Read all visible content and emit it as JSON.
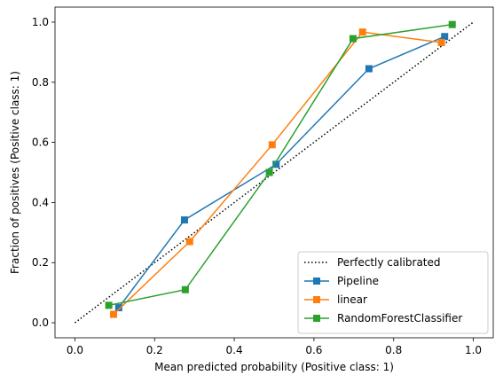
{
  "chart_data": {
    "type": "line",
    "title": "",
    "xlabel": "Mean predicted probability (Positive class: 1)",
    "ylabel": "Fraction of positives (Positive class: 1)",
    "xlim": [
      -0.05,
      1.05
    ],
    "ylim": [
      -0.05,
      1.05
    ],
    "xticks": [
      0.0,
      0.2,
      0.4,
      0.6,
      0.8,
      1.0
    ],
    "yticks": [
      0.0,
      0.2,
      0.4,
      0.6,
      0.8,
      1.0
    ],
    "xtick_labels": [
      "0.0",
      "0.2",
      "0.4",
      "0.6",
      "0.8",
      "1.0"
    ],
    "ytick_labels": [
      "0.0",
      "0.2",
      "0.4",
      "0.6",
      "0.8",
      "1.0"
    ],
    "grid": false,
    "legend_position": "lower right",
    "reference_line": {
      "name": "Perfectly calibrated",
      "x": [
        0,
        1
      ],
      "y": [
        0,
        1
      ],
      "color": "#000000",
      "style": "dotted"
    },
    "series": [
      {
        "name": "Pipeline",
        "color": "#1f77b4",
        "marker": "square",
        "x": [
          0.11,
          0.275,
          0.505,
          0.738,
          0.928
        ],
        "y": [
          0.05,
          0.342,
          0.527,
          0.845,
          0.952
        ]
      },
      {
        "name": "linear",
        "color": "#ff7f0e",
        "marker": "square",
        "x": [
          0.097,
          0.288,
          0.495,
          0.722,
          0.92
        ],
        "y": [
          0.028,
          0.27,
          0.592,
          0.967,
          0.932
        ]
      },
      {
        "name": "RandomForestClassifier",
        "color": "#2ca02c",
        "marker": "square",
        "x": [
          0.085,
          0.277,
          0.488,
          0.698,
          0.947
        ],
        "y": [
          0.058,
          0.11,
          0.5,
          0.945,
          0.992
        ]
      }
    ]
  }
}
